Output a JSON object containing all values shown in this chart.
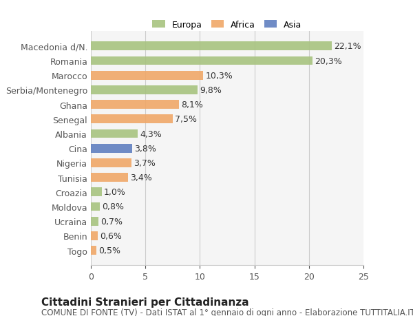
{
  "categories": [
    "Togo",
    "Benin",
    "Ucraina",
    "Moldova",
    "Croazia",
    "Tunisia",
    "Nigeria",
    "Cina",
    "Albania",
    "Senegal",
    "Ghana",
    "Serbia/Montenegro",
    "Marocco",
    "Romania",
    "Macedonia d/N."
  ],
  "values": [
    0.5,
    0.6,
    0.7,
    0.8,
    1.0,
    3.4,
    3.7,
    3.8,
    4.3,
    7.5,
    8.1,
    9.8,
    10.3,
    20.3,
    22.1
  ],
  "continents": [
    "Africa",
    "Africa",
    "Europa",
    "Europa",
    "Europa",
    "Africa",
    "Africa",
    "Asia",
    "Europa",
    "Africa",
    "Africa",
    "Europa",
    "Africa",
    "Europa",
    "Europa"
  ],
  "labels": [
    "0,5%",
    "0,6%",
    "0,7%",
    "0,8%",
    "1,0%",
    "3,4%",
    "3,7%",
    "3,8%",
    "4,3%",
    "7,5%",
    "8,1%",
    "9,8%",
    "10,3%",
    "20,3%",
    "22,1%"
  ],
  "colors": {
    "Europa": "#a8c380",
    "Africa": "#f0a868",
    "Asia": "#6080c0"
  },
  "legend_colors": {
    "Europa": "#a8c380",
    "Africa": "#f0a868",
    "Asia": "#6080c0"
  },
  "xlim": [
    0,
    25
  ],
  "xticks": [
    0,
    5,
    10,
    15,
    20,
    25
  ],
  "title": "Cittadini Stranieri per Cittadinanza",
  "subtitle": "COMUNE DI FONTE (TV) - Dati ISTAT al 1° gennaio di ogni anno - Elaborazione TUTTITALIA.IT",
  "bg_color": "#ffffff",
  "bar_bg_color": "#f5f5f5",
  "grid_color": "#cccccc",
  "label_fontsize": 9,
  "tick_fontsize": 9,
  "title_fontsize": 11,
  "subtitle_fontsize": 8.5
}
